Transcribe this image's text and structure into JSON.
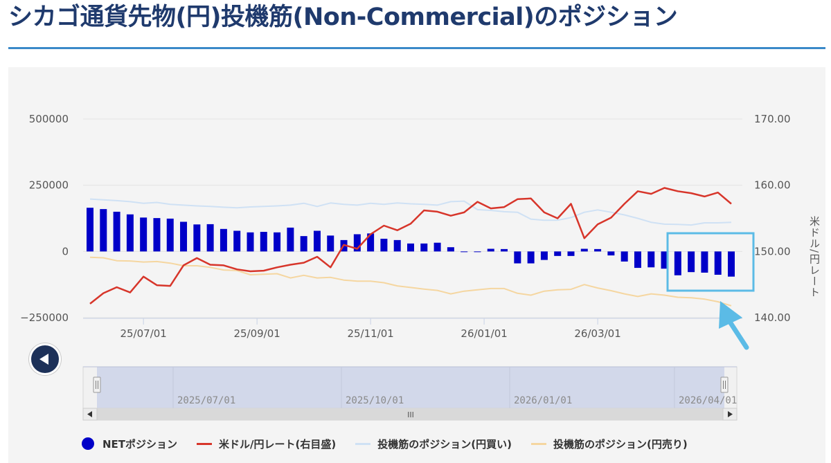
{
  "page": {
    "title": "シカゴ通貨先物(円)投機筋(Non-Commercial)のポジション"
  },
  "chart_data": {
    "type": "bar+line",
    "y_left": {
      "ticks": [
        "500000",
        "250000",
        "0",
        "−250000"
      ],
      "range": [
        -250000,
        500000
      ]
    },
    "y_right": {
      "ticks": [
        "170.00",
        "160.00",
        "150.00",
        "140.00"
      ],
      "range": [
        140,
        170
      ],
      "label": "米ドル/円レート"
    },
    "x_ticks": [
      "25/07/01",
      "25/09/01",
      "25/11/01",
      "26/01/01",
      "26/03/01"
    ],
    "navigator_labels": [
      "2025/07/01",
      "2025/10/01",
      "2026/01/01",
      "2026/04/01"
    ],
    "series": [
      {
        "name": "NETポジション",
        "type": "bar",
        "color": "#0000c8",
        "values": [
          165000,
          160000,
          150000,
          140000,
          128000,
          126000,
          124000,
          112000,
          102000,
          103000,
          85000,
          78000,
          72000,
          74000,
          72000,
          90000,
          58000,
          78000,
          60000,
          43000,
          65000,
          68000,
          48000,
          43000,
          30000,
          30000,
          33000,
          16000,
          -2000,
          0,
          10000,
          9000,
          -45000,
          -45000,
          -32000,
          -17000,
          -17000,
          10000,
          9000,
          -15000,
          -38000,
          -62000,
          -60000,
          -65000,
          -90000,
          -78000,
          -80000,
          -88000,
          -95000
        ]
      },
      {
        "name": "米ドル/円レート(右目盛)",
        "type": "line",
        "color": "#d7352a",
        "values": [
          142.1,
          143.7,
          144.6,
          143.8,
          146.2,
          144.9,
          144.8,
          147.9,
          149.0,
          148.0,
          147.9,
          147.3,
          147.0,
          147.1,
          147.6,
          148.0,
          148.3,
          149.2,
          147.6,
          151.0,
          150.4,
          152.6,
          153.9,
          153.2,
          154.2,
          156.2,
          156.0,
          155.4,
          155.9,
          157.5,
          156.5,
          156.7,
          157.9,
          158.0,
          155.9,
          155.0,
          157.2,
          152.0,
          154.1,
          155.1,
          157.2,
          159.1,
          158.7,
          159.6,
          159.1,
          158.8,
          158.3,
          158.9,
          157.2
        ]
      },
      {
        "name": "投機筋のポジション(円買い)",
        "type": "line",
        "color": "#cfe1f4",
        "values": [
          198000,
          195000,
          192000,
          188000,
          182000,
          185000,
          178000,
          175000,
          172000,
          170000,
          167000,
          165000,
          168000,
          170000,
          172000,
          175000,
          182000,
          170000,
          183000,
          178000,
          175000,
          182000,
          178000,
          183000,
          180000,
          178000,
          175000,
          188000,
          190000,
          158000,
          155000,
          150000,
          148000,
          122000,
          118000,
          118000,
          128000,
          148000,
          157000,
          148000,
          138000,
          125000,
          110000,
          103000,
          102000,
          100000,
          108000,
          108000,
          110000
        ]
      },
      {
        "name": "投機筋のポジション(円売り)",
        "type": "line",
        "color": "#f5d6a0",
        "values": [
          -22000,
          -24000,
          -35000,
          -36000,
          -40000,
          -38000,
          -44000,
          -54000,
          -54000,
          -60000,
          -70000,
          -72000,
          -88000,
          -86000,
          -84000,
          -100000,
          -90000,
          -100000,
          -98000,
          -108000,
          -112000,
          -112000,
          -118000,
          -130000,
          -136000,
          -142000,
          -147000,
          -160000,
          -150000,
          -145000,
          -140000,
          -140000,
          -158000,
          -165000,
          -150000,
          -145000,
          -143000,
          -125000,
          -138000,
          -148000,
          -160000,
          -170000,
          -160000,
          -165000,
          -173000,
          -175000,
          -180000,
          -190000,
          -205000
        ]
      }
    ],
    "highlight": "recent NETポジション short bars",
    "legend_position": "bottom"
  },
  "legend": [
    {
      "label": "NETポジション",
      "color": "#0000c8",
      "symbol": "dot"
    },
    {
      "label": "米ドル/円レート(右目盛)",
      "color": "#d7352a",
      "symbol": "line"
    },
    {
      "label": "投機筋のポジション(円買い)",
      "color": "#cfe1f4",
      "symbol": "line"
    },
    {
      "label": "投機筋のポジション(円売り)",
      "color": "#f5d6a0",
      "symbol": "line"
    }
  ],
  "controls": {
    "back_icon": "left-arrow-icon",
    "scrollbar_grip": "III"
  },
  "colors": {
    "accent": "#1f3a6d",
    "highlight": "#5bbbe6",
    "navigator_fill": "#d2d8ea"
  }
}
